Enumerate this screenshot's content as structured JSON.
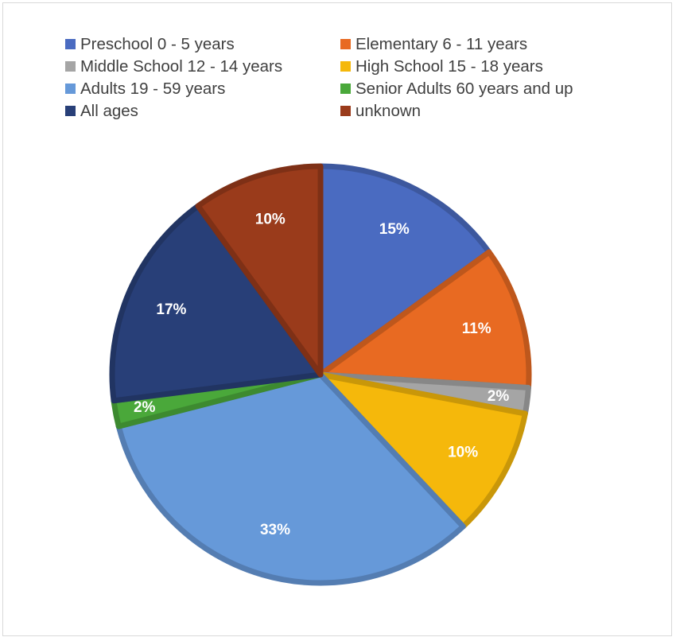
{
  "chart_data": {
    "type": "pie",
    "legend_position": "top",
    "slices": [
      {
        "name": "Preschool  0 - 5 years",
        "value": 15,
        "label": "15%",
        "color": "#4a6bc1"
      },
      {
        "name": "Elementary  6 - 11 years",
        "value": 11,
        "label": "11%",
        "color": "#e86a22"
      },
      {
        "name": "Middle School  12 - 14 years",
        "value": 2,
        "label": "2%",
        "color": "#a5a5a5"
      },
      {
        "name": "High School  15 - 18 years",
        "value": 10,
        "label": "10%",
        "color": "#f5b80b"
      },
      {
        "name": "Adults  19 - 59 years",
        "value": 33,
        "label": "33%",
        "color": "#6699d9"
      },
      {
        "name": "Senior Adults  60 years and up",
        "value": 2,
        "label": "2%",
        "color": "#4aa83a"
      },
      {
        "name": "All ages",
        "value": 17,
        "label": "17%",
        "color": "#283f78"
      },
      {
        "name": "unknown",
        "value": 10,
        "label": "10%",
        "color": "#9a3b1b"
      }
    ]
  }
}
